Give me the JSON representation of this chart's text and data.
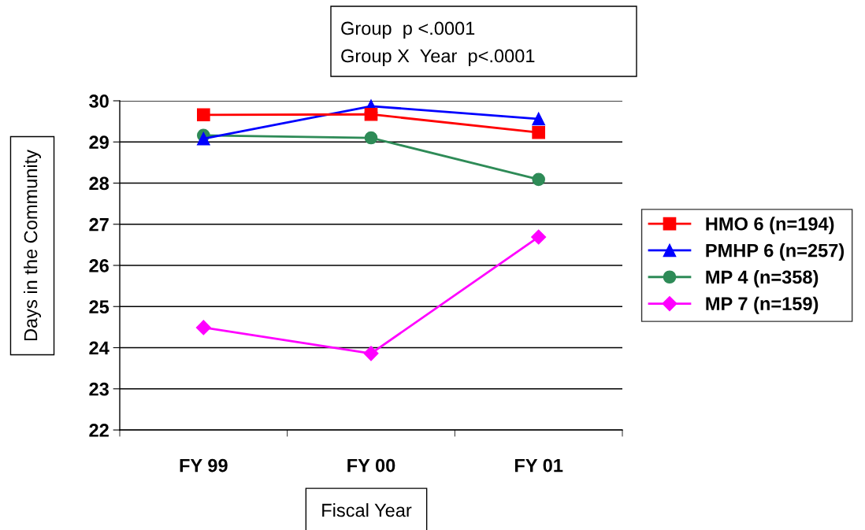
{
  "chart_data": {
    "type": "line",
    "xlabel": "Fiscal Year",
    "ylabel": "Days in the Community",
    "annotations": [
      "Group  p <.0001",
      "Group X  Year  p<.0001"
    ],
    "categories": [
      "FY 99",
      "FY 00",
      "FY 01"
    ],
    "series": [
      {
        "name": "HMO 6 (n=194)",
        "color": "#ff0000",
        "marker": "square",
        "values": [
          29.66,
          29.67,
          29.23
        ]
      },
      {
        "name": "PMHP 6 (n=257)",
        "color": "#0000ff",
        "marker": "triangle",
        "values": [
          29.08,
          29.87,
          29.56
        ]
      },
      {
        "name": "MP 4 (n=358)",
        "color": "#2e8b57",
        "marker": "circle",
        "values": [
          29.16,
          29.1,
          28.09
        ]
      },
      {
        "name": "MP 7 (n=159)",
        "color": "#ff00ff",
        "marker": "diamond",
        "values": [
          24.49,
          23.86,
          26.69
        ]
      }
    ],
    "ylim": [
      22,
      30
    ],
    "yticks": [
      22,
      23,
      24,
      25,
      26,
      27,
      28,
      29,
      30
    ],
    "grid": "y",
    "legend": "right",
    "line_style": "solid"
  }
}
